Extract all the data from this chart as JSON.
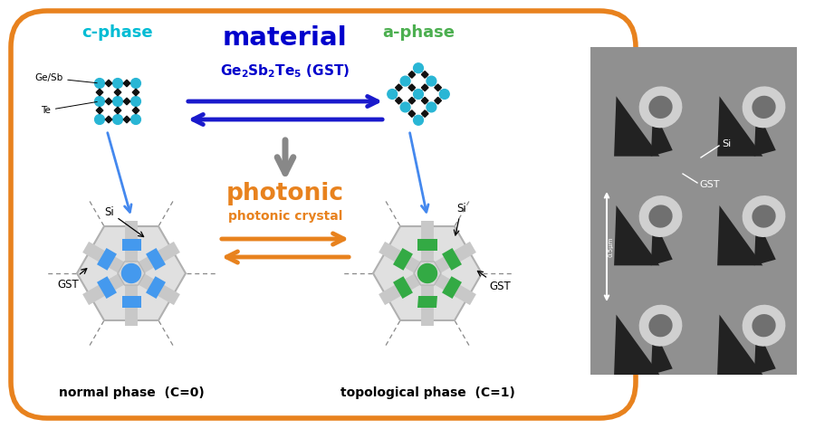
{
  "bg_color": "#ffffff",
  "border_color": "#e8821e",
  "border_lw": 4,
  "title_material": "material",
  "title_material_color": "#0000cc",
  "title_photonic": "photonic",
  "title_photonic_color": "#e8821e",
  "subtitle_gst": "Ge$_2$Sb$_2$Te$_5$ (GST)",
  "subtitle_pc": "photonic crystal",
  "label_cphase": "c-phase",
  "label_cphase_color": "#00bcd4",
  "label_aphase": "a-phase",
  "label_aphase_color": "#4caf50",
  "label_normal": "normal phase  (C=0)",
  "label_topo": "topological phase  (C=1)",
  "teal_color": "#29b6d5",
  "black_color": "#111111",
  "blue_color": "#1a1acc",
  "green_color": "#2e8b2e",
  "orange_color": "#e8821e",
  "cell_blue": "#4499ee",
  "cell_green": "#33aa44",
  "hex_gray": "#d0d0d0",
  "spoke_gray": "#cccccc"
}
